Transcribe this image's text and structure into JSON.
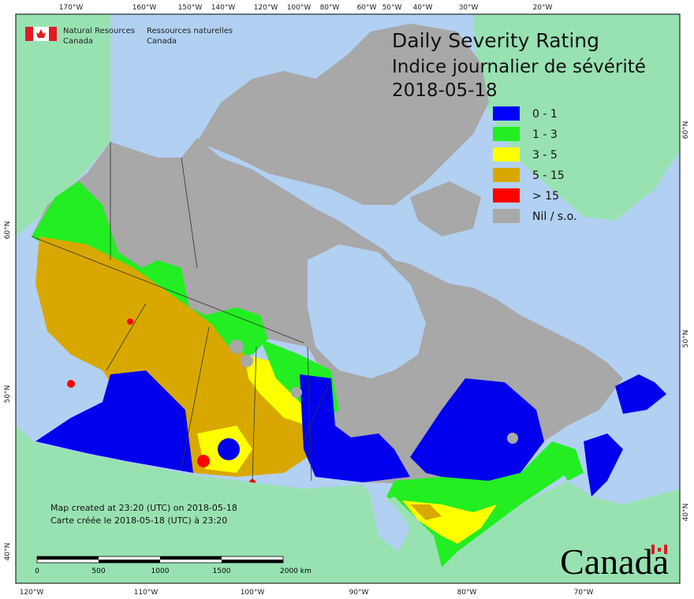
{
  "agency": {
    "en": [
      "Natural Resources",
      "Canada"
    ],
    "fr": [
      "Ressources naturelles",
      "Canada"
    ]
  },
  "title": {
    "line1": "Daily Severity Rating",
    "line2": "Indice journalier de sévérité",
    "date": "2018-05-18"
  },
  "legend": [
    {
      "label": "0 - 1",
      "color": "#0000ff"
    },
    {
      "label": "1 - 3",
      "color": "#22ee22"
    },
    {
      "label": "3 - 5",
      "color": "#ffff00"
    },
    {
      "label": "5 - 15",
      "color": "#d8a800"
    },
    {
      "label": "> 15",
      "color": "#ff0000"
    },
    {
      "label": "Nil / s.o.",
      "color": "#a8a8a8"
    }
  ],
  "footer": {
    "en": "Map created at 23:20 (UTC) on 2018-05-18",
    "fr": "Carte créée le 2018-05-18 (UTC) à 23:20"
  },
  "scale_bar": {
    "labels": [
      "0",
      "500",
      "1000",
      "1500",
      "2000  km"
    ]
  },
  "graticule": {
    "top": [
      "170°W",
      "160°W",
      "150°W",
      "140°W",
      "120°W",
      "100°W",
      "80°W",
      "60°W",
      "50°W",
      "40°W",
      "30°W",
      "20°W"
    ],
    "bottom": [
      "120°W",
      "110°W",
      "100°W",
      "90°W",
      "80°W",
      "70°W"
    ],
    "left": [
      "60°N",
      "50°N",
      "40°N"
    ],
    "right": [
      "60°N",
      "50°N",
      "40°N"
    ]
  },
  "wordmark": "Canada"
}
